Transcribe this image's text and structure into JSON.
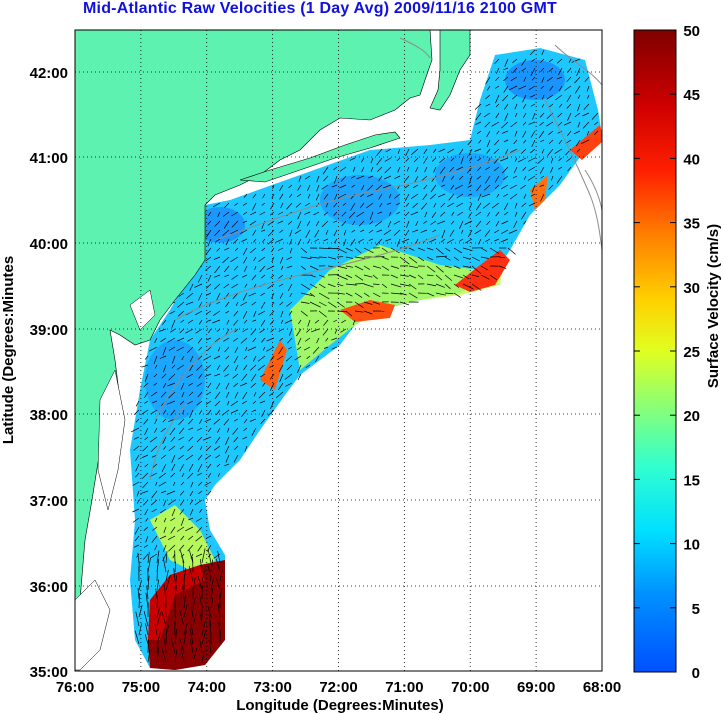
{
  "title": "Mid-Atlantic Raw Velocities (1 Day Avg) 2009/11/16 2100 GMT",
  "map": {
    "xlabel": "Longitude (Degrees:Minutes)",
    "ylabel": "Latitude (Degrees:Minutes",
    "lon_range": [
      -76,
      -68
    ],
    "lat_range": [
      35,
      42.5
    ],
    "lon_ticks": [
      "76:00",
      "75:00",
      "74:00",
      "73:00",
      "72:00",
      "71:00",
      "70:00",
      "69:00",
      "68:00"
    ],
    "lat_ticks": [
      "35:00",
      "36:00",
      "37:00",
      "38:00",
      "39:00",
      "40:00",
      "41:00",
      "42:00"
    ],
    "grid": "dotted",
    "land_color": "#5ef2b0",
    "water_nodata_color": "#ffffff",
    "contour_color": "#8c8c8c",
    "vector_color": "#000000"
  },
  "colorbar": {
    "label": "Surface Velocity (cm/s)",
    "range": [
      0,
      50
    ],
    "ticks": [
      "0",
      "5",
      "10",
      "15",
      "20",
      "25",
      "30",
      "35",
      "40",
      "45",
      "50"
    ],
    "colormap": "jet"
  }
}
